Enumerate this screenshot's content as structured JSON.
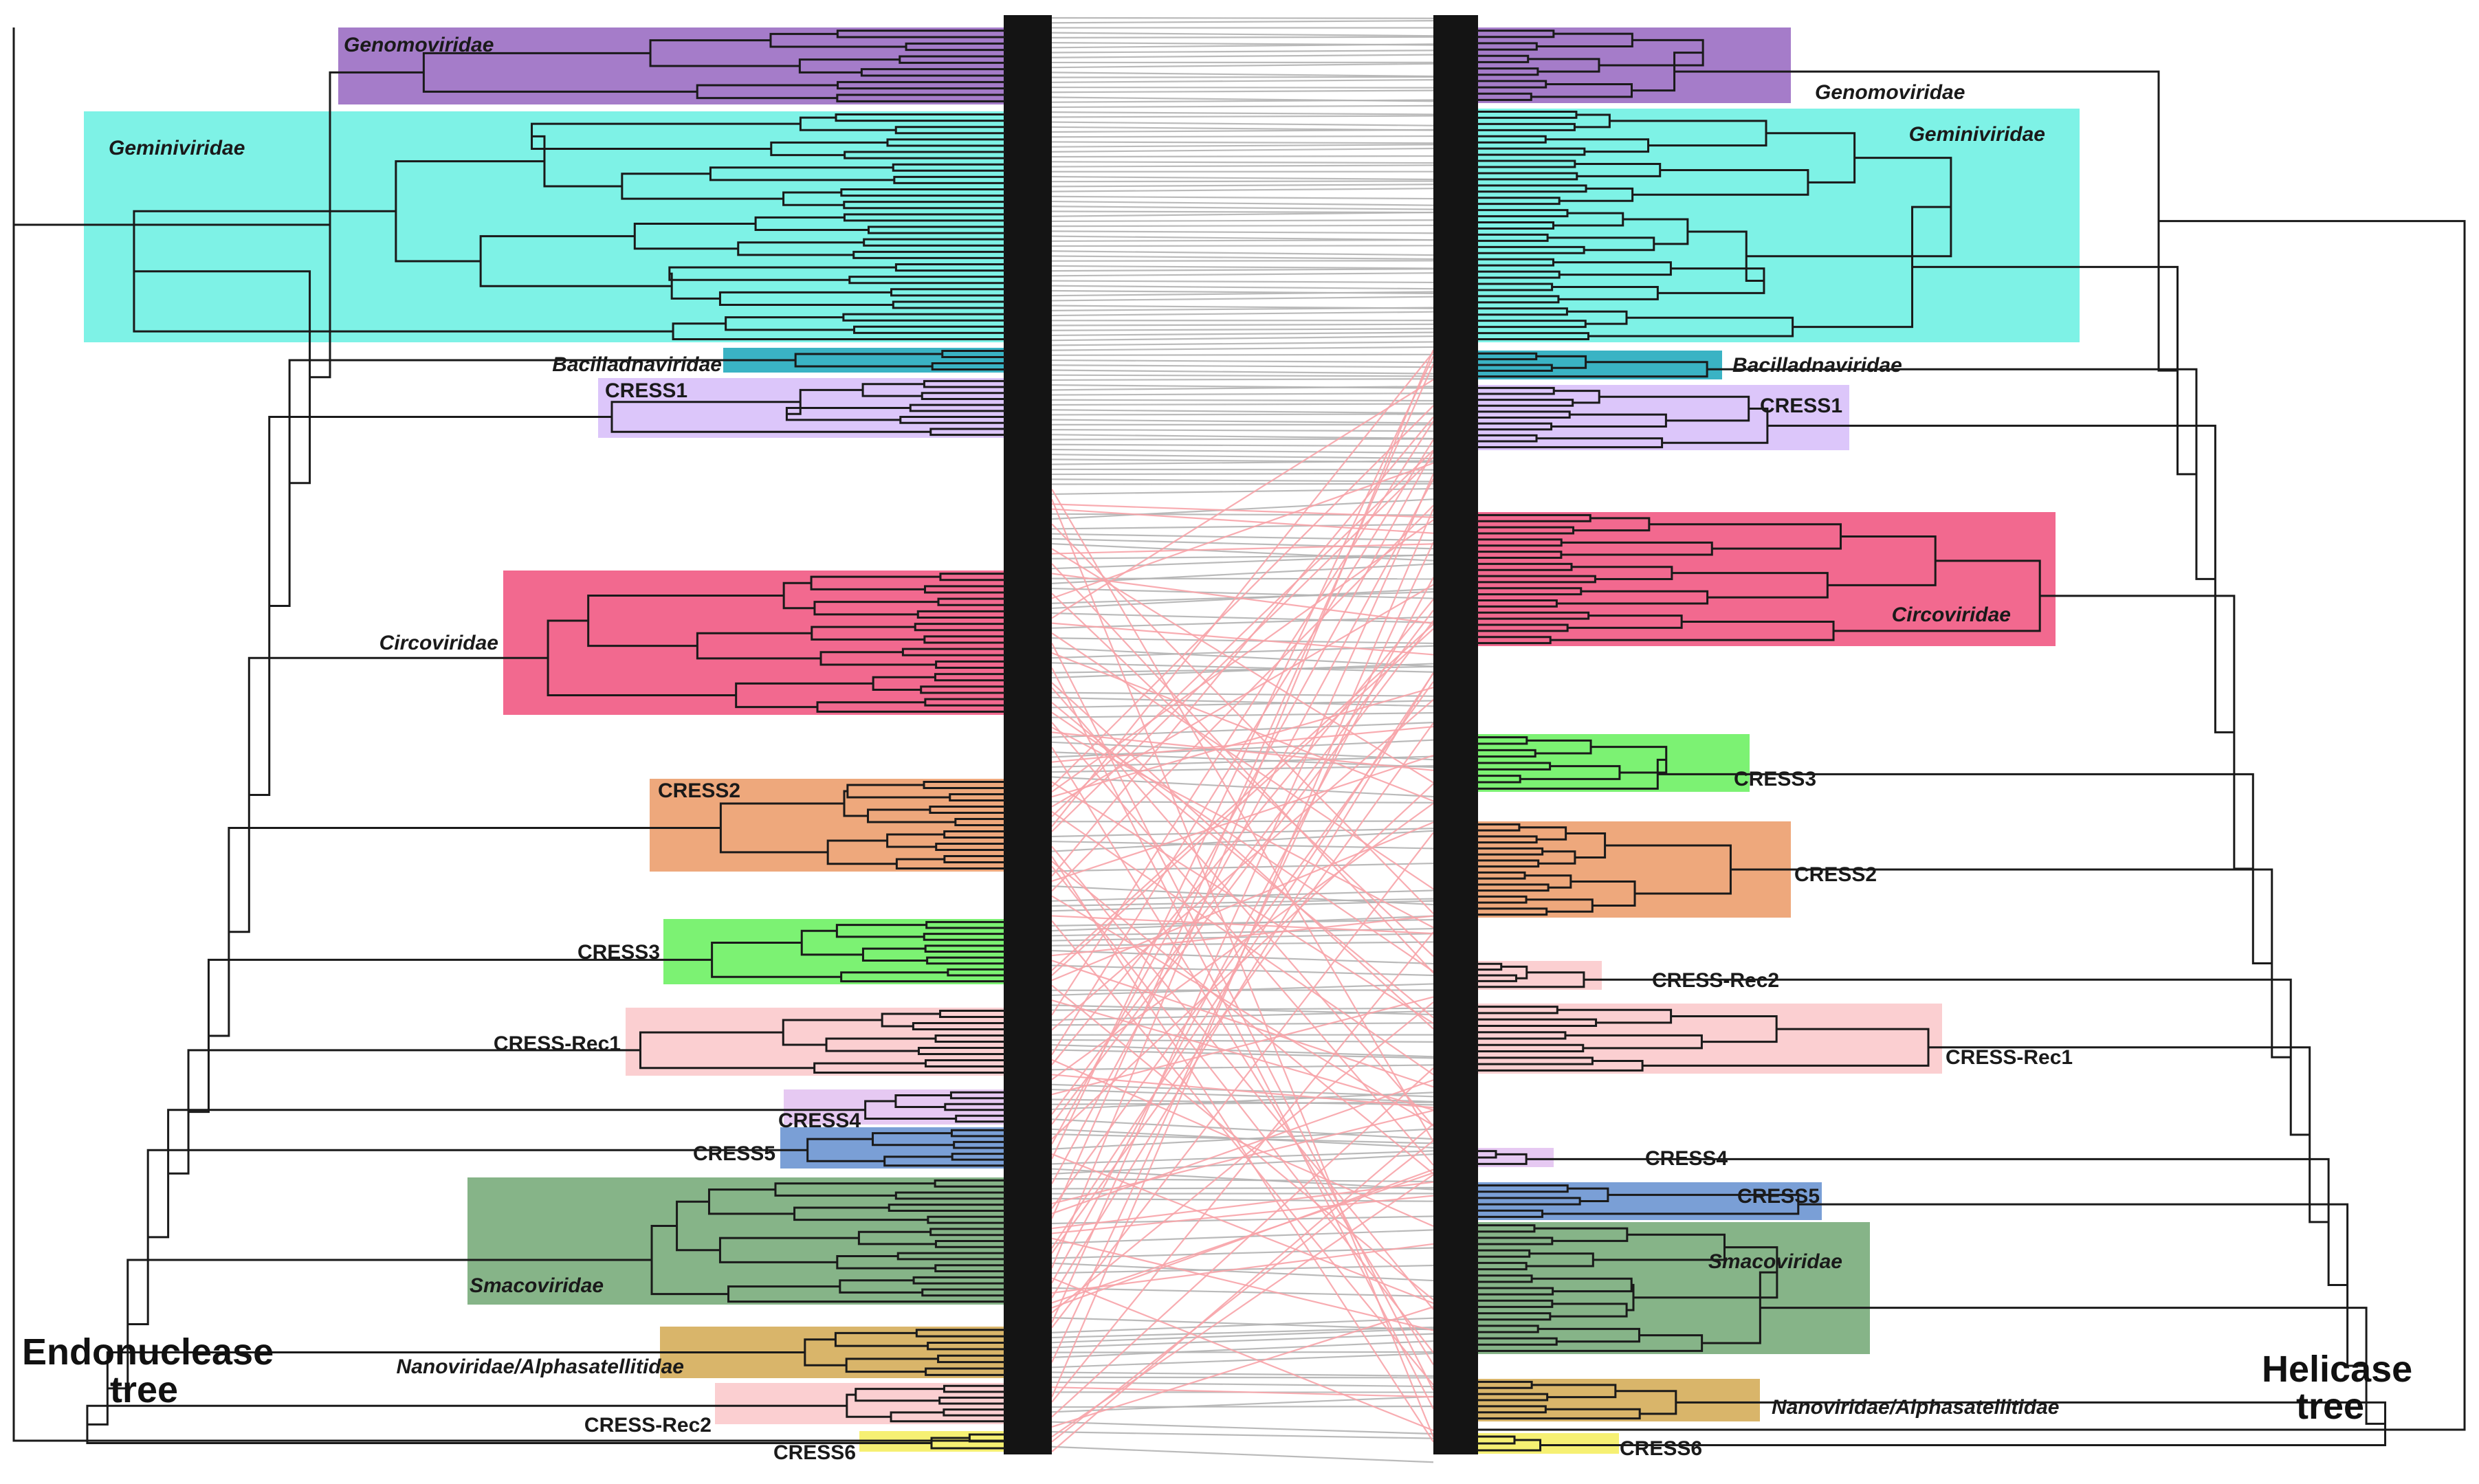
{
  "titles": {
    "left": [
      "Endonuclease",
      "tree"
    ],
    "right": [
      "Helicase",
      "tree"
    ]
  },
  "colors": {
    "Genomoviridae": "#a57cc9",
    "Geminiviridae": "#7ef2e6",
    "Bacilladnaviridae": "#3ab3c4",
    "CRESS1": "#dcc6fa",
    "Circoviridae": "#f2698f",
    "CRESS2": "#eea87c",
    "CRESS3": "#7cf273",
    "CRESS-Rec1": "#fbcfd1",
    "CRESS-Rec2": "#fbcfd1",
    "CRESS4": "#e6c9f2",
    "CRESS5": "#7a9fd6",
    "Smacoviridae": "#86b488",
    "Nanoviridae/Alphasatellitidae": "#d9b56a",
    "CRESS6": "#f6f073",
    "link_congruent": "#b3b3b3",
    "link_incongruent": "#f8a4a9",
    "tree_line": "#1a1a1a"
  },
  "clades": [
    "Genomoviridae",
    "Geminiviridae",
    "Bacilladnaviridae",
    "CRESS1",
    "Circoviridae",
    "CRESS2",
    "CRESS3",
    "CRESS-Rec1",
    "CRESS4",
    "CRESS5",
    "Smacoviridae",
    "Nanoviridae/Alphasatellitidae",
    "CRESS-Rec2",
    "CRESS6"
  ],
  "labels": {
    "left": {
      "Genomoviridae": "Genomoviridae",
      "Geminiviridae": "Geminiviridae",
      "Bacilladnaviridae": "Bacilladnaviridae",
      "CRESS1": "CRESS1",
      "Circoviridae": "Circoviridae",
      "CRESS2": "CRESS2",
      "CRESS3": "CRESS3",
      "CRESS-Rec1": "CRESS-Rec1",
      "CRESS4": "CRESS4",
      "CRESS5": "CRESS5",
      "Smacoviridae": "Smacoviridae",
      "Nanoviridae/Alphasatellitidae": "Nanoviridae/Alphasatellitidae",
      "CRESS-Rec2": "CRESS-Rec2",
      "CRESS6": "CRESS6"
    },
    "right": {
      "Genomoviridae": "Genomoviridae",
      "Geminiviridae": "Geminiviridae",
      "Bacilladnaviridae": "Bacilladnaviridae",
      "CRESS1": "CRESS1",
      "Circoviridae": "Circoviridae",
      "CRESS3": "CRESS3",
      "CRESS2": "CRESS2",
      "CRESS-Rec2": "CRESS-Rec2",
      "CRESS-Rec1": "CRESS-Rec1",
      "CRESS4": "CRESS4",
      "CRESS5": "CRESS5",
      "Smacoviridae": "Smacoviridae",
      "Nanoviridae/Alphasatellitidae": "Nanoviridae/Alphasatellitidae",
      "CRESS6": "CRESS6"
    }
  }
}
